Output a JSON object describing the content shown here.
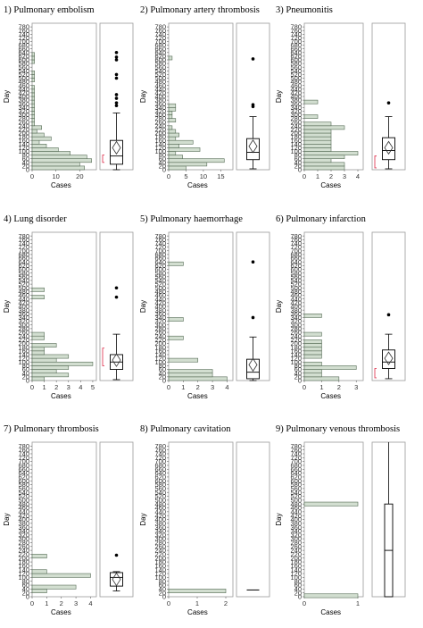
{
  "chart_data": [
    {
      "type": "bar",
      "orientation": "horizontal",
      "with_boxplot": true,
      "title": "1) Pulmonary embolism",
      "xlabel": "Cases",
      "ylabel": "Day",
      "ylim": [
        0,
        800
      ],
      "y_ticks": [
        "0",
        "20",
        "40",
        "60",
        "80",
        "100",
        "120",
        "140",
        "160",
        "180",
        "200",
        "220",
        "240",
        "260",
        "280",
        "300",
        "320",
        "340",
        "360",
        "380",
        "400",
        "420",
        "440",
        "460",
        "480",
        "500",
        "520",
        "540",
        "560",
        "580",
        "600",
        "620",
        "640",
        "660",
        "680",
        "700",
        "720",
        "740",
        "760",
        "780"
      ],
      "x_ticks": [
        "0",
        "10",
        "20"
      ],
      "xlim": [
        0,
        27
      ],
      "bins": [
        {
          "day": 10,
          "cases": 22
        },
        {
          "day": 30,
          "cases": 20
        },
        {
          "day": 50,
          "cases": 25
        },
        {
          "day": 70,
          "cases": 23
        },
        {
          "day": 90,
          "cases": 16
        },
        {
          "day": 110,
          "cases": 11
        },
        {
          "day": 130,
          "cases": 6
        },
        {
          "day": 150,
          "cases": 3
        },
        {
          "day": 170,
          "cases": 8
        },
        {
          "day": 190,
          "cases": 5
        },
        {
          "day": 210,
          "cases": 2
        },
        {
          "day": 230,
          "cases": 4
        },
        {
          "day": 250,
          "cases": 1
        },
        {
          "day": 270,
          "cases": 1
        },
        {
          "day": 290,
          "cases": 1
        },
        {
          "day": 310,
          "cases": 1
        },
        {
          "day": 330,
          "cases": 1
        },
        {
          "day": 350,
          "cases": 1
        },
        {
          "day": 370,
          "cases": 1
        },
        {
          "day": 390,
          "cases": 1
        },
        {
          "day": 410,
          "cases": 1
        },
        {
          "day": 430,
          "cases": 1
        },
        {
          "day": 450,
          "cases": 1
        },
        {
          "day": 490,
          "cases": 1
        },
        {
          "day": 510,
          "cases": 1
        },
        {
          "day": 530,
          "cases": 1
        },
        {
          "day": 590,
          "cases": 1
        },
        {
          "day": 610,
          "cases": 1
        },
        {
          "day": 630,
          "cases": 1
        }
      ],
      "boxplot": {
        "min": 0,
        "q1": 30,
        "median": 75,
        "mean": 120,
        "q3": 160,
        "max": 310,
        "outliers": [
          350,
          365,
          390,
          410,
          500,
          520,
          600,
          615,
          640
        ],
        "ci": [
          40,
          80
        ]
      }
    },
    {
      "type": "bar",
      "orientation": "horizontal",
      "with_boxplot": true,
      "title": "2) Pulmonary artery thrombosis",
      "xlabel": "Cases",
      "ylabel": "Day",
      "ylim": [
        0,
        800
      ],
      "y_ticks": [
        "0",
        "20",
        "40",
        "60",
        "80",
        "100",
        "120",
        "140",
        "160",
        "180",
        "200",
        "220",
        "240",
        "260",
        "280",
        "300",
        "320",
        "340",
        "360",
        "380",
        "400",
        "420",
        "440",
        "460",
        "480",
        "500",
        "520",
        "540",
        "560",
        "580",
        "600",
        "620",
        "640",
        "660",
        "680",
        "700",
        "720",
        "740",
        "760",
        "780"
      ],
      "x_ticks": [
        "0",
        "5",
        "10",
        "15"
      ],
      "xlim": [
        0,
        18.5
      ],
      "bins": [
        {
          "day": 10,
          "cases": 5
        },
        {
          "day": 30,
          "cases": 11
        },
        {
          "day": 50,
          "cases": 16
        },
        {
          "day": 70,
          "cases": 4
        },
        {
          "day": 90,
          "cases": 2
        },
        {
          "day": 110,
          "cases": 9
        },
        {
          "day": 130,
          "cases": 3
        },
        {
          "day": 150,
          "cases": 7
        },
        {
          "day": 170,
          "cases": 2
        },
        {
          "day": 190,
          "cases": 3
        },
        {
          "day": 210,
          "cases": 2
        },
        {
          "day": 230,
          "cases": 1
        },
        {
          "day": 270,
          "cases": 2
        },
        {
          "day": 290,
          "cases": 1
        },
        {
          "day": 310,
          "cases": 1
        },
        {
          "day": 330,
          "cases": 2
        },
        {
          "day": 350,
          "cases": 2
        },
        {
          "day": 610,
          "cases": 1
        }
      ],
      "boxplot": {
        "min": 5,
        "q1": 55,
        "median": 95,
        "mean": 128,
        "q3": 170,
        "max": 290,
        "outliers": [
          345,
          355,
          605
        ],
        "ci": []
      }
    },
    {
      "type": "bar",
      "orientation": "horizontal",
      "with_boxplot": true,
      "title": "3) Pneumonitis",
      "xlabel": "Cases",
      "ylabel": "Day",
      "ylim": [
        0,
        800
      ],
      "y_ticks": [
        "0",
        "20",
        "40",
        "60",
        "80",
        "100",
        "120",
        "140",
        "160",
        "180",
        "200",
        "220",
        "240",
        "260",
        "280",
        "300",
        "320",
        "340",
        "360",
        "380",
        "400",
        "420",
        "440",
        "460",
        "480",
        "500",
        "520",
        "540",
        "560",
        "580",
        "600",
        "620",
        "640",
        "660",
        "680",
        "700",
        "720",
        "740",
        "760",
        "780"
      ],
      "x_ticks": [
        "0",
        "1",
        "2",
        "3",
        "4"
      ],
      "xlim": [
        0,
        4.4
      ],
      "bins": [
        {
          "day": 10,
          "cases": 3
        },
        {
          "day": 30,
          "cases": 3
        },
        {
          "day": 50,
          "cases": 2
        },
        {
          "day": 70,
          "cases": 3
        },
        {
          "day": 90,
          "cases": 4
        },
        {
          "day": 110,
          "cases": 2
        },
        {
          "day": 130,
          "cases": 2
        },
        {
          "day": 150,
          "cases": 2
        },
        {
          "day": 170,
          "cases": 2
        },
        {
          "day": 190,
          "cases": 2
        },
        {
          "day": 210,
          "cases": 2
        },
        {
          "day": 230,
          "cases": 3
        },
        {
          "day": 250,
          "cases": 2
        },
        {
          "day": 290,
          "cases": 1
        },
        {
          "day": 370,
          "cases": 1
        }
      ],
      "boxplot": {
        "min": 5,
        "q1": 55,
        "median": 105,
        "mean": 120,
        "q3": 175,
        "max": 290,
        "outliers": [
          365
        ],
        "ci": [
          10,
          75
        ]
      }
    },
    {
      "type": "bar",
      "orientation": "horizontal",
      "with_boxplot": true,
      "title": "4) Lung disorder",
      "xlabel": "Cases",
      "ylabel": "Day",
      "ylim": [
        0,
        800
      ],
      "y_ticks": [
        "0",
        "20",
        "40",
        "60",
        "80",
        "100",
        "120",
        "140",
        "160",
        "180",
        "200",
        "220",
        "240",
        "260",
        "280",
        "300",
        "320",
        "340",
        "360",
        "380",
        "400",
        "420",
        "440",
        "460",
        "480",
        "500",
        "520",
        "540",
        "560",
        "580",
        "600",
        "620",
        "640",
        "660",
        "680",
        "700",
        "720",
        "740",
        "760",
        "780"
      ],
      "x_ticks": [
        "0",
        "1",
        "2",
        "3",
        "4",
        "5"
      ],
      "xlim": [
        0,
        5.3
      ],
      "bins": [
        {
          "day": 10,
          "cases": 1
        },
        {
          "day": 30,
          "cases": 3
        },
        {
          "day": 50,
          "cases": 2
        },
        {
          "day": 70,
          "cases": 3
        },
        {
          "day": 90,
          "cases": 5
        },
        {
          "day": 110,
          "cases": 2
        },
        {
          "day": 130,
          "cases": 3
        },
        {
          "day": 150,
          "cases": 1
        },
        {
          "day": 170,
          "cases": 1
        },
        {
          "day": 190,
          "cases": 2
        },
        {
          "day": 230,
          "cases": 1
        },
        {
          "day": 250,
          "cases": 1
        },
        {
          "day": 450,
          "cases": 1
        },
        {
          "day": 490,
          "cases": 1
        }
      ],
      "boxplot": {
        "min": 5,
        "q1": 60,
        "median": 100,
        "mean": 110,
        "q3": 140,
        "max": 250,
        "outliers": [
          450,
          500
        ],
        "ci": [
          80,
          175
        ]
      }
    },
    {
      "type": "bar",
      "orientation": "horizontal",
      "with_boxplot": true,
      "title": "5) Pulmonary haemorrhage",
      "xlabel": "Cases",
      "ylabel": "Day",
      "ylim": [
        0,
        800
      ],
      "y_ticks": [
        "0",
        "20",
        "40",
        "60",
        "80",
        "100",
        "120",
        "140",
        "160",
        "180",
        "200",
        "220",
        "240",
        "260",
        "280",
        "300",
        "320",
        "340",
        "360",
        "380",
        "400",
        "420",
        "440",
        "460",
        "480",
        "500",
        "520",
        "540",
        "560",
        "580",
        "600",
        "620",
        "640",
        "660",
        "680",
        "700",
        "720",
        "740",
        "760",
        "780"
      ],
      "x_ticks": [
        "0",
        "1",
        "2",
        "3",
        "4"
      ],
      "xlim": [
        0,
        4.4
      ],
      "bins": [
        {
          "day": 10,
          "cases": 4
        },
        {
          "day": 30,
          "cases": 3
        },
        {
          "day": 50,
          "cases": 3
        },
        {
          "day": 110,
          "cases": 2
        },
        {
          "day": 230,
          "cases": 1
        },
        {
          "day": 330,
          "cases": 1
        },
        {
          "day": 630,
          "cases": 1
        }
      ],
      "boxplot": {
        "min": 0,
        "q1": 10,
        "median": 45,
        "mean": 85,
        "q3": 115,
        "max": 235,
        "outliers": [
          340,
          640
        ],
        "ci": []
      }
    },
    {
      "type": "bar",
      "orientation": "horizontal",
      "with_boxplot": true,
      "title": "6) Pulmonary infarction",
      "xlabel": "Cases",
      "ylabel": "Day",
      "ylim": [
        0,
        800
      ],
      "y_ticks": [
        "0",
        "20",
        "40",
        "60",
        "80",
        "100",
        "120",
        "140",
        "160",
        "180",
        "200",
        "220",
        "240",
        "260",
        "280",
        "300",
        "320",
        "340",
        "360",
        "380",
        "400",
        "420",
        "440",
        "460",
        "480",
        "500",
        "520",
        "540",
        "560",
        "580",
        "600",
        "620",
        "640",
        "660",
        "680",
        "700",
        "720",
        "740",
        "760",
        "780"
      ],
      "x_ticks": [
        "0",
        "1",
        "2",
        "3"
      ],
      "xlim": [
        0,
        3.4
      ],
      "bins": [
        {
          "day": 10,
          "cases": 2
        },
        {
          "day": 30,
          "cases": 1
        },
        {
          "day": 50,
          "cases": 1
        },
        {
          "day": 70,
          "cases": 3
        },
        {
          "day": 90,
          "cases": 1
        },
        {
          "day": 130,
          "cases": 1
        },
        {
          "day": 150,
          "cases": 1
        },
        {
          "day": 170,
          "cases": 1
        },
        {
          "day": 190,
          "cases": 1
        },
        {
          "day": 210,
          "cases": 1
        },
        {
          "day": 250,
          "cases": 1
        },
        {
          "day": 350,
          "cases": 1
        }
      ],
      "boxplot": {
        "min": 10,
        "q1": 65,
        "median": 100,
        "mean": 120,
        "q3": 165,
        "max": 250,
        "outliers": [
          355
        ],
        "ci": [
          15,
          65
        ]
      }
    },
    {
      "type": "bar",
      "orientation": "horizontal",
      "with_boxplot": true,
      "title": "7) Pulmonary thrombosis",
      "xlabel": "Cases",
      "ylabel": "Day",
      "ylim": [
        0,
        800
      ],
      "y_ticks": [
        "0",
        "20",
        "40",
        "60",
        "80",
        "100",
        "120",
        "140",
        "160",
        "180",
        "200",
        "220",
        "240",
        "260",
        "280",
        "300",
        "320",
        "340",
        "360",
        "380",
        "400",
        "420",
        "440",
        "460",
        "480",
        "500",
        "520",
        "540",
        "560",
        "580",
        "600",
        "620",
        "640",
        "660",
        "680",
        "700",
        "720",
        "740",
        "760",
        "780"
      ],
      "x_ticks": [
        "0",
        "1",
        "2",
        "3",
        "4"
      ],
      "xlim": [
        0,
        4.4
      ],
      "bins": [
        {
          "day": 30,
          "cases": 1
        },
        {
          "day": 50,
          "cases": 3
        },
        {
          "day": 110,
          "cases": 4
        },
        {
          "day": 130,
          "cases": 1
        },
        {
          "day": 210,
          "cases": 1
        }
      ],
      "boxplot": {
        "min": 30,
        "q1": 55,
        "median": 100,
        "mean": 90,
        "q3": 125,
        "max": 130,
        "outliers": [
          215
        ],
        "ci": []
      }
    },
    {
      "type": "bar",
      "orientation": "horizontal",
      "with_boxplot": true,
      "title": "8) Pulmonary cavitation",
      "xlabel": "Cases",
      "ylabel": "Day",
      "ylim": [
        0,
        800
      ],
      "y_ticks": [
        "0",
        "20",
        "40",
        "60",
        "80",
        "100",
        "120",
        "140",
        "160",
        "180",
        "200",
        "220",
        "240",
        "260",
        "280",
        "300",
        "320",
        "340",
        "360",
        "380",
        "400",
        "420",
        "440",
        "460",
        "480",
        "500",
        "520",
        "540",
        "560",
        "580",
        "600",
        "620",
        "640",
        "660",
        "680",
        "700",
        "720",
        "740",
        "760",
        "780"
      ],
      "x_ticks": [
        "0",
        "1",
        "2"
      ],
      "xlim": [
        0,
        2.25
      ],
      "bins": [
        {
          "day": 30,
          "cases": 2
        }
      ],
      "boxplot": {
        "single_value": 35
      }
    },
    {
      "type": "bar",
      "orientation": "horizontal",
      "with_boxplot": true,
      "title": "9) Pulmonary venous thrombosis",
      "xlabel": "Cases",
      "ylabel": "Day",
      "ylim": [
        0,
        800
      ],
      "y_ticks": [
        "0",
        "20",
        "40",
        "60",
        "80",
        "100",
        "120",
        "140",
        "160",
        "180",
        "200",
        "220",
        "240",
        "260",
        "280",
        "300",
        "320",
        "340",
        "360",
        "380",
        "400",
        "420",
        "440",
        "460",
        "480",
        "500",
        "520",
        "540",
        "560",
        "580",
        "600",
        "620",
        "640",
        "660",
        "680",
        "700",
        "720",
        "740",
        "760",
        "780"
      ],
      "x_ticks": [
        "0",
        "1"
      ],
      "xlim": [
        0,
        1.1
      ],
      "bins": [
        {
          "day": 5,
          "cases": 1
        },
        {
          "day": 480,
          "cases": 1
        }
      ],
      "boxplot": {
        "min": 0,
        "q1": 0,
        "median": 240,
        "q3": 480,
        "max": 800
      }
    }
  ]
}
